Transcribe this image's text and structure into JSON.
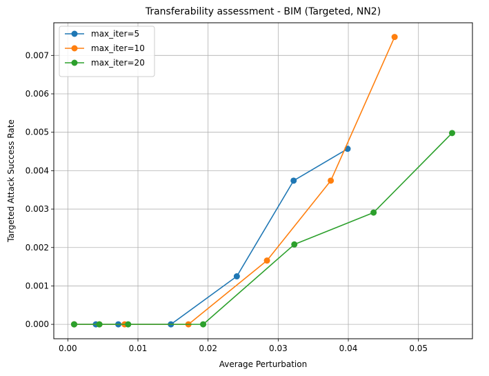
{
  "chart_data": {
    "type": "line",
    "title": "Transferability assessment - BIM (Targeted, NN2)",
    "xlabel": "Average Perturbation",
    "ylabel": "Targeted Attack Success Rate",
    "xlim": [
      -0.002,
      0.0577
    ],
    "ylim": [
      -0.000375,
      0.00785
    ],
    "xticks": [
      0.0,
      0.01,
      0.02,
      0.03,
      0.04,
      0.05
    ],
    "xtick_labels": [
      "0.00",
      "0.01",
      "0.02",
      "0.03",
      "0.04",
      "0.05"
    ],
    "yticks": [
      0.0,
      0.001,
      0.002,
      0.003,
      0.004,
      0.005,
      0.006,
      0.007
    ],
    "ytick_labels": [
      "0.000",
      "0.001",
      "0.002",
      "0.003",
      "0.004",
      "0.005",
      "0.006",
      "0.007"
    ],
    "grid": true,
    "legend_position": "top-left",
    "series": [
      {
        "name": "max_iter=5",
        "color": "#1f77b4",
        "x": [
          0.0009,
          0.004,
          0.0072,
          0.0147,
          0.0241,
          0.0322,
          0.0399
        ],
        "y": [
          0.0,
          0.0,
          0.0,
          0.0,
          0.00125,
          0.00374,
          0.00457
        ]
      },
      {
        "name": "max_iter=10",
        "color": "#ff7f0e",
        "x": [
          0.0009,
          0.0045,
          0.0081,
          0.0172,
          0.0284,
          0.0375,
          0.0466
        ],
        "y": [
          0.0,
          0.0,
          0.0,
          0.0,
          0.00166,
          0.00374,
          0.00748
        ]
      },
      {
        "name": "max_iter=20",
        "color": "#2ca02c",
        "x": [
          0.0009,
          0.0045,
          0.0086,
          0.0193,
          0.0323,
          0.0436,
          0.0548
        ],
        "y": [
          0.0,
          0.0,
          0.0,
          0.0,
          0.00208,
          0.00291,
          0.00498
        ]
      }
    ]
  }
}
